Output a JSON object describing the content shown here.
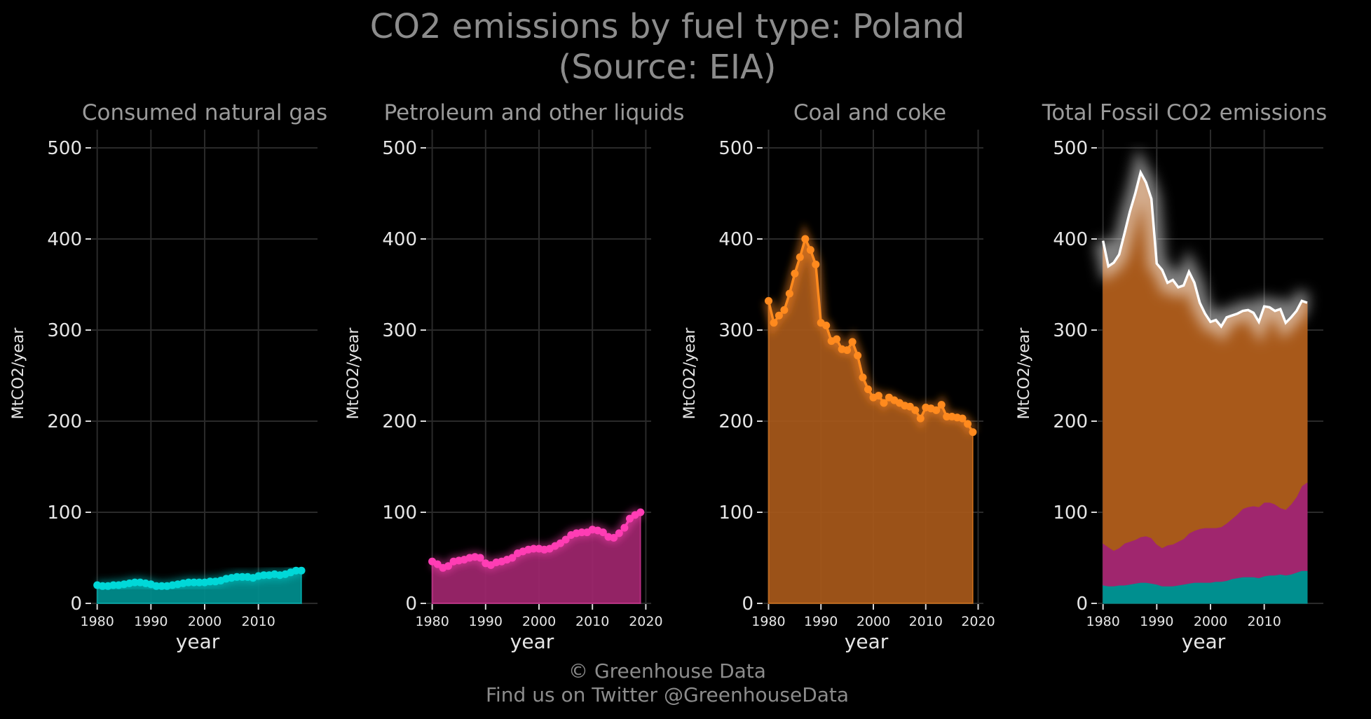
{
  "header": {
    "title_line1": "CO2 emissions by fuel type: Poland",
    "title_line2": "(Source: EIA)"
  },
  "footer": {
    "copyright": "© Greenhouse Data",
    "twitter": "Find us on Twitter @GreenhouseData"
  },
  "colors": {
    "background": "#000000",
    "grid": "#2a2a2a",
    "gas": "#00d8d8",
    "gas_fill": "#008f8f",
    "petroleum": "#ff3db4",
    "petroleum_fill": "#a0266e",
    "coal": "#ff8a1e",
    "coal_fill": "#a8591a",
    "total": "#ffffff"
  },
  "chart_data": [
    {
      "type": "area",
      "title": "Consumed natural gas",
      "xlabel": "year",
      "ylabel": "MtCO2/year",
      "xlim": [
        1979,
        2021
      ],
      "ylim": [
        0,
        520
      ],
      "xticks": [
        1980,
        1990,
        2000,
        2010
      ],
      "yticks": [
        0,
        100,
        200,
        300,
        400,
        500
      ],
      "grid": true,
      "markers": true,
      "x": [
        1980,
        1981,
        1982,
        1983,
        1984,
        1985,
        1986,
        1987,
        1988,
        1989,
        1990,
        1991,
        1992,
        1993,
        1994,
        1995,
        1996,
        1997,
        1998,
        1999,
        2000,
        2001,
        2002,
        2003,
        2004,
        2005,
        2006,
        2007,
        2008,
        2009,
        2010,
        2011,
        2012,
        2013,
        2014,
        2015,
        2016,
        2017,
        2018
      ],
      "series": [
        {
          "values": [
            20,
            19,
            19,
            20,
            20,
            21,
            22,
            23,
            23,
            22,
            21,
            19,
            19,
            19,
            20,
            21,
            22,
            23,
            23,
            23,
            23,
            24,
            24,
            25,
            27,
            28,
            29,
            29,
            29,
            28,
            30,
            31,
            31,
            32,
            31,
            32,
            34,
            36,
            36
          ]
        }
      ]
    },
    {
      "type": "area",
      "title": "Petroleum and other liquids",
      "xlabel": "year",
      "ylabel": "MtCO2/year",
      "xlim": [
        1979,
        2021
      ],
      "ylim": [
        0,
        520
      ],
      "xticks": [
        1980,
        1990,
        2000,
        2010,
        2020
      ],
      "yticks": [
        0,
        100,
        200,
        300,
        400,
        500
      ],
      "grid": true,
      "markers": true,
      "x": [
        1980,
        1981,
        1982,
        1983,
        1984,
        1985,
        1986,
        1987,
        1988,
        1989,
        1990,
        1991,
        1992,
        1993,
        1994,
        1995,
        1996,
        1997,
        1998,
        1999,
        2000,
        2001,
        2002,
        2003,
        2004,
        2005,
        2006,
        2007,
        2008,
        2009,
        2010,
        2011,
        2012,
        2013,
        2014,
        2015,
        2016,
        2017,
        2018,
        2019
      ],
      "series": [
        {
          "values": [
            46,
            43,
            39,
            41,
            46,
            47,
            48,
            50,
            51,
            50,
            44,
            42,
            45,
            46,
            48,
            50,
            55,
            57,
            59,
            60,
            60,
            59,
            60,
            63,
            66,
            70,
            75,
            77,
            78,
            78,
            81,
            80,
            78,
            73,
            72,
            77,
            83,
            93,
            97,
            100
          ]
        }
      ]
    },
    {
      "type": "area",
      "title": "Coal and coke",
      "xlabel": "year",
      "ylabel": "MtCO2/year",
      "xlim": [
        1979,
        2021
      ],
      "ylim": [
        0,
        520
      ],
      "xticks": [
        1980,
        1990,
        2000,
        2010,
        2020
      ],
      "yticks": [
        0,
        100,
        200,
        300,
        400,
        500
      ],
      "grid": true,
      "markers": true,
      "x": [
        1980,
        1981,
        1982,
        1983,
        1984,
        1985,
        1986,
        1987,
        1988,
        1989,
        1990,
        1991,
        1992,
        1993,
        1994,
        1995,
        1996,
        1997,
        1998,
        1999,
        2000,
        2001,
        2002,
        2003,
        2004,
        2005,
        2006,
        2007,
        2008,
        2009,
        2010,
        2011,
        2012,
        2013,
        2014,
        2015,
        2016,
        2017,
        2018,
        2019
      ],
      "series": [
        {
          "values": [
            332,
            308,
            316,
            322,
            340,
            362,
            380,
            400,
            388,
            372,
            308,
            305,
            288,
            290,
            279,
            278,
            287,
            272,
            248,
            235,
            226,
            228,
            220,
            226,
            223,
            220,
            217,
            216,
            212,
            203,
            215,
            214,
            212,
            218,
            205,
            205,
            204,
            203,
            197,
            188
          ]
        }
      ]
    },
    {
      "type": "area",
      "stacked": true,
      "title": "Total Fossil CO2 emissions",
      "xlabel": "year",
      "ylabel": "MtCO2/year",
      "xlim": [
        1979,
        2021
      ],
      "ylim": [
        0,
        520
      ],
      "xticks": [
        1980,
        1990,
        2000,
        2010
      ],
      "yticks": [
        0,
        100,
        200,
        300,
        400,
        500
      ],
      "grid": true,
      "x": [
        1980,
        1981,
        1982,
        1983,
        1984,
        1985,
        1986,
        1987,
        1988,
        1989,
        1990,
        1991,
        1992,
        1993,
        1994,
        1995,
        1996,
        1997,
        1998,
        1999,
        2000,
        2001,
        2002,
        2003,
        2004,
        2005,
        2006,
        2007,
        2008,
        2009,
        2010,
        2011,
        2012,
        2013,
        2014,
        2015,
        2016,
        2017,
        2018
      ],
      "series": [
        {
          "values": [
            20,
            19,
            19,
            20,
            20,
            21,
            22,
            23,
            23,
            22,
            21,
            19,
            19,
            19,
            20,
            21,
            22,
            23,
            23,
            23,
            23,
            24,
            24,
            25,
            27,
            28,
            29,
            29,
            29,
            28,
            30,
            31,
            31,
            32,
            31,
            32,
            34,
            36,
            36
          ]
        },
        {
          "values": [
            46,
            43,
            39,
            41,
            46,
            47,
            48,
            50,
            51,
            50,
            44,
            42,
            45,
            46,
            48,
            50,
            55,
            57,
            59,
            60,
            60,
            59,
            60,
            63,
            66,
            70,
            75,
            77,
            78,
            78,
            81,
            80,
            78,
            73,
            72,
            77,
            83,
            93,
            97
          ]
        },
        {
          "values": [
            332,
            308,
            316,
            322,
            340,
            362,
            380,
            400,
            388,
            372,
            308,
            305,
            288,
            290,
            279,
            278,
            287,
            272,
            248,
            235,
            226,
            228,
            220,
            226,
            223,
            220,
            217,
            216,
            212,
            203,
            215,
            214,
            212,
            218,
            205,
            205,
            204,
            203,
            197
          ]
        }
      ],
      "total": [
        398,
        370,
        374,
        383,
        406,
        430,
        450,
        473,
        462,
        444,
        373,
        366,
        352,
        355,
        347,
        349,
        364,
        352,
        330,
        318,
        309,
        311,
        304,
        314,
        316,
        318,
        321,
        322,
        319,
        309,
        326,
        325,
        321,
        323,
        308,
        314,
        321,
        332,
        330
      ]
    }
  ]
}
